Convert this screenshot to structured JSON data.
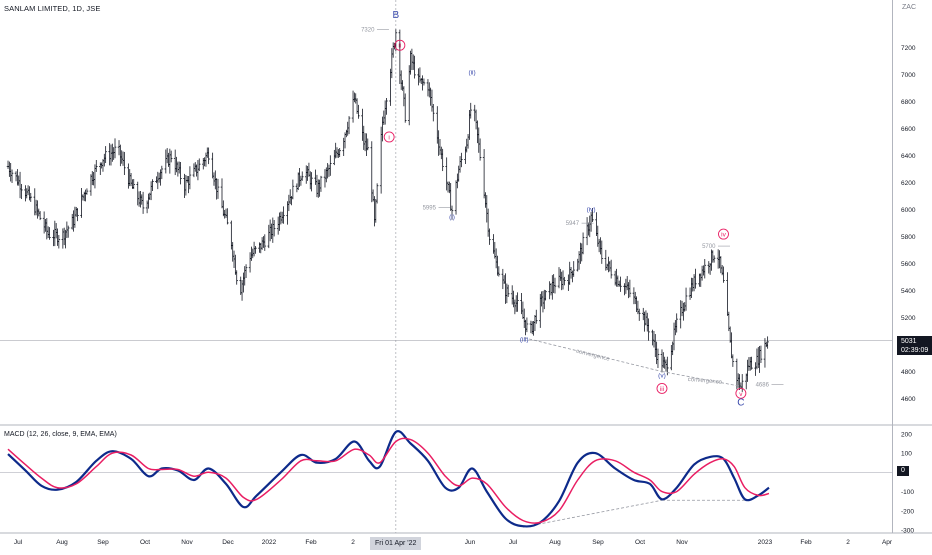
{
  "header": {
    "symbol": "SANLAM LIMITED, 1D, JSE",
    "currency": "ZAC",
    "last_price": "5031",
    "countdown": "02:39:09",
    "crosshair_date": "Fri 01 Apr '22",
    "macd_title": "MACD (12, 26, close, 9, EMA, EMA)",
    "macd_zero_label": "0"
  },
  "colors": {
    "bars": "#131722",
    "wave_pink": "#e91e63",
    "wave_blue": "#3949ab",
    "macd_line": "#0d2a8a",
    "signal_line": "#e91e63",
    "annotation_grey": "#9598a1"
  },
  "chart_data": [
    {
      "type": "ohlc",
      "title": "SANLAM LIMITED, 1D, JSE",
      "x_ticks": [
        "Jul",
        "Aug",
        "Sep",
        "Oct",
        "Nov",
        "Dec",
        "2022",
        "Feb",
        "2",
        "Jun",
        "Jul",
        "Aug",
        "Sep",
        "Oct",
        "Nov",
        "2023",
        "Feb",
        "2",
        "Apr"
      ],
      "y_ticks": [
        7200,
        7000,
        6800,
        6600,
        6400,
        6200,
        6000,
        5800,
        5600,
        5400,
        5200,
        5000,
        4800,
        4600
      ],
      "ylim": [
        4500,
        7450
      ],
      "close_path": [
        [
          "2021-06-15",
          6320
        ],
        [
          "2021-06-25",
          6180
        ],
        [
          "2021-07-05",
          6020
        ],
        [
          "2021-07-15",
          5820
        ],
        [
          "2021-07-25",
          5800
        ],
        [
          "2021-08-03",
          5920
        ],
        [
          "2021-08-15",
          6220
        ],
        [
          "2021-08-25",
          6380
        ],
        [
          "2021-09-05",
          6450
        ],
        [
          "2021-09-15",
          6180
        ],
        [
          "2021-09-24",
          6020
        ],
        [
          "2021-10-05",
          6260
        ],
        [
          "2021-10-15",
          6400
        ],
        [
          "2021-10-25",
          6180
        ],
        [
          "2021-11-03",
          6300
        ],
        [
          "2021-11-12",
          6420
        ],
        [
          "2021-11-20",
          6080
        ],
        [
          "2021-11-28",
          5820
        ],
        [
          "2021-12-05",
          5380
        ],
        [
          "2021-12-12",
          5650
        ],
        [
          "2021-12-20",
          5720
        ],
        [
          "2022-01-01",
          5880
        ],
        [
          "2022-01-12",
          6100
        ],
        [
          "2022-01-22",
          6300
        ],
        [
          "2022-02-01",
          6150
        ],
        [
          "2022-02-10",
          6300
        ],
        [
          "2022-02-20",
          6500
        ],
        [
          "2022-03-01",
          6820
        ],
        [
          "2022-03-08",
          6500
        ],
        [
          "2022-03-12",
          6420
        ],
        [
          "2022-03-16",
          5900
        ],
        [
          "2022-03-22",
          6650
        ],
        [
          "2022-03-28",
          7050
        ],
        [
          "2022-04-01",
          7320
        ],
        [
          "2022-04-05",
          6950
        ],
        [
          "2022-04-08",
          6700
        ],
        [
          "2022-04-12",
          7120
        ],
        [
          "2022-04-18",
          6950
        ],
        [
          "2022-04-25",
          6920
        ],
        [
          "2022-05-02",
          6550
        ],
        [
          "2022-05-08",
          6250
        ],
        [
          "2022-05-13",
          5995
        ],
        [
          "2022-05-18",
          6300
        ],
        [
          "2022-05-24",
          6500
        ],
        [
          "2022-05-28",
          6820
        ],
        [
          "2022-06-03",
          6400
        ],
        [
          "2022-06-10",
          5800
        ],
        [
          "2022-06-15",
          5600
        ],
        [
          "2022-06-22",
          5400
        ],
        [
          "2022-06-29",
          5330
        ],
        [
          "2022-07-05",
          5200
        ],
        [
          "2022-07-10",
          5080
        ],
        [
          "2022-07-18",
          5300
        ],
        [
          "2022-07-28",
          5450
        ],
        [
          "2022-08-08",
          5500
        ],
        [
          "2022-08-16",
          5650
        ],
        [
          "2022-08-25",
          5947
        ],
        [
          "2022-09-02",
          5650
        ],
        [
          "2022-09-12",
          5500
        ],
        [
          "2022-09-22",
          5400
        ],
        [
          "2022-10-01",
          5250
        ],
        [
          "2022-10-08",
          5100
        ],
        [
          "2022-10-14",
          4900
        ],
        [
          "2022-10-20",
          4830
        ],
        [
          "2022-10-28",
          5150
        ],
        [
          "2022-11-04",
          5350
        ],
        [
          "2022-11-12",
          5500
        ],
        [
          "2022-11-20",
          5600
        ],
        [
          "2022-11-27",
          5700
        ],
        [
          "2022-12-02",
          5450
        ],
        [
          "2022-12-07",
          5000
        ],
        [
          "2022-12-10",
          4800
        ],
        [
          "2022-12-15",
          4686
        ],
        [
          "2022-12-21",
          4850
        ],
        [
          "2022-12-27",
          4880
        ],
        [
          "2023-01-04",
          5031
        ]
      ],
      "annotations": [
        {
          "text": "B",
          "date": "2022-04-01",
          "price": 7420,
          "color": "wave_blue"
        },
        {
          "text": "7320",
          "date": "2022-03-11",
          "price": 7320,
          "color": "annotation_grey"
        },
        {
          "text": "ii",
          "date": "2022-04-04",
          "price": 7200,
          "color": "wave_pink",
          "circle": true
        },
        {
          "text": "i",
          "date": "2022-03-27",
          "price": 6520,
          "color": "wave_pink",
          "circle": true
        },
        {
          "text": "(ii)",
          "date": "2022-05-28",
          "price": 7000,
          "color": "wave_blue"
        },
        {
          "text": "5995",
          "date": "2022-04-26",
          "price": 6000,
          "color": "annotation_grey"
        },
        {
          "text": "(i)",
          "date": "2022-05-13",
          "price": 5930,
          "color": "wave_blue"
        },
        {
          "text": "5947",
          "date": "2022-08-11",
          "price": 5885,
          "color": "annotation_grey"
        },
        {
          "text": "(iv)",
          "date": "2022-08-25",
          "price": 5985,
          "color": "wave_blue"
        },
        {
          "text": "5700",
          "date": "2022-11-21",
          "price": 5715,
          "color": "annotation_grey"
        },
        {
          "text": "iv",
          "date": "2022-12-02",
          "price": 5800,
          "color": "wave_pink",
          "circle": true
        },
        {
          "text": "(iii)",
          "date": "2022-07-06",
          "price": 5023,
          "color": "wave_blue"
        },
        {
          "text": "convergence",
          "date": "2022-08-26",
          "price": 4910,
          "color": "annotation_grey"
        },
        {
          "text": "(v)",
          "date": "2022-10-17",
          "price": 4756,
          "color": "wave_blue"
        },
        {
          "text": "iii",
          "date": "2022-10-17",
          "price": 4656,
          "color": "wave_pink",
          "circle": true
        },
        {
          "text": "convergence",
          "date": "2022-11-18",
          "price": 4720,
          "color": "annotation_grey"
        },
        {
          "text": "4686",
          "date": "2022-12-31",
          "price": 4690,
          "color": "annotation_grey"
        },
        {
          "text": "v",
          "date": "2022-12-15",
          "price": 4620,
          "color": "wave_pink",
          "circle": true
        },
        {
          "text": "C",
          "date": "2022-12-15",
          "price": 4550,
          "color": "wave_blue"
        }
      ],
      "trendlines": [
        {
          "from": [
            "2022-07-06",
            5050
          ],
          "to": [
            "2022-10-17",
            4800
          ]
        },
        {
          "from": [
            "2022-10-17",
            4800
          ],
          "to": [
            "2022-12-15",
            4690
          ]
        }
      ],
      "last_price_line": 5031,
      "crosshair_date": "2022-04-01"
    },
    {
      "type": "line",
      "title": "MACD (12, 26, close, 9, EMA, EMA)",
      "y_ticks": [
        200,
        100,
        0,
        -100,
        -200,
        -300
      ],
      "ylim": [
        -310,
        220
      ],
      "series": [
        {
          "color": "macd_line",
          "points": [
            [
              "2021-06-15",
              95
            ],
            [
              "2021-06-28",
              10
            ],
            [
              "2021-07-10",
              -70
            ],
            [
              "2021-07-22",
              -90
            ],
            [
              "2021-08-05",
              -50
            ],
            [
              "2021-08-20",
              60
            ],
            [
              "2021-09-01",
              110
            ],
            [
              "2021-09-15",
              70
            ],
            [
              "2021-09-28",
              -20
            ],
            [
              "2021-10-08",
              20
            ],
            [
              "2021-10-20",
              10
            ],
            [
              "2021-11-01",
              -40
            ],
            [
              "2021-11-12",
              20
            ],
            [
              "2021-11-25",
              -60
            ],
            [
              "2021-12-08",
              -180
            ],
            [
              "2021-12-18",
              -120
            ],
            [
              "2022-01-05",
              0
            ],
            [
              "2022-01-20",
              90
            ],
            [
              "2022-02-01",
              50
            ],
            [
              "2022-02-15",
              70
            ],
            [
              "2022-03-01",
              160
            ],
            [
              "2022-03-12",
              60
            ],
            [
              "2022-03-20",
              30
            ],
            [
              "2022-04-01",
              210
            ],
            [
              "2022-04-12",
              150
            ],
            [
              "2022-04-25",
              60
            ],
            [
              "2022-05-08",
              -80
            ],
            [
              "2022-05-18",
              -80
            ],
            [
              "2022-05-28",
              20
            ],
            [
              "2022-06-08",
              -100
            ],
            [
              "2022-06-22",
              -240
            ],
            [
              "2022-07-05",
              -280
            ],
            [
              "2022-07-18",
              -260
            ],
            [
              "2022-08-01",
              -150
            ],
            [
              "2022-08-15",
              50
            ],
            [
              "2022-08-28",
              100
            ],
            [
              "2022-09-12",
              20
            ],
            [
              "2022-09-26",
              -40
            ],
            [
              "2022-10-08",
              -60
            ],
            [
              "2022-10-17",
              -140
            ],
            [
              "2022-10-28",
              -80
            ],
            [
              "2022-11-10",
              40
            ],
            [
              "2022-11-22",
              80
            ],
            [
              "2022-12-02",
              70
            ],
            [
              "2022-12-10",
              -30
            ],
            [
              "2022-12-18",
              -140
            ],
            [
              "2022-12-28",
              -120
            ],
            [
              "2023-01-05",
              -80
            ]
          ]
        },
        {
          "color": "signal_line",
          "points": [
            [
              "2021-06-15",
              120
            ],
            [
              "2021-06-28",
              40
            ],
            [
              "2021-07-10",
              -30
            ],
            [
              "2021-07-22",
              -80
            ],
            [
              "2021-08-05",
              -60
            ],
            [
              "2021-08-20",
              30
            ],
            [
              "2021-09-01",
              100
            ],
            [
              "2021-09-15",
              90
            ],
            [
              "2021-09-28",
              20
            ],
            [
              "2021-10-08",
              15
            ],
            [
              "2021-10-20",
              15
            ],
            [
              "2021-11-01",
              -20
            ],
            [
              "2021-11-12",
              0
            ],
            [
              "2021-11-25",
              -30
            ],
            [
              "2021-12-08",
              -130
            ],
            [
              "2021-12-18",
              -140
            ],
            [
              "2022-01-05",
              -40
            ],
            [
              "2022-01-20",
              60
            ],
            [
              "2022-02-01",
              60
            ],
            [
              "2022-02-15",
              60
            ],
            [
              "2022-03-01",
              120
            ],
            [
              "2022-03-12",
              90
            ],
            [
              "2022-03-20",
              50
            ],
            [
              "2022-04-01",
              160
            ],
            [
              "2022-04-12",
              170
            ],
            [
              "2022-04-25",
              100
            ],
            [
              "2022-05-08",
              -20
            ],
            [
              "2022-05-18",
              -70
            ],
            [
              "2022-05-28",
              -30
            ],
            [
              "2022-06-08",
              -60
            ],
            [
              "2022-06-22",
              -180
            ],
            [
              "2022-07-05",
              -250
            ],
            [
              "2022-07-18",
              -260
            ],
            [
              "2022-08-01",
              -200
            ],
            [
              "2022-08-15",
              -40
            ],
            [
              "2022-08-28",
              60
            ],
            [
              "2022-09-12",
              60
            ],
            [
              "2022-09-26",
              0
            ],
            [
              "2022-10-08",
              -40
            ],
            [
              "2022-10-17",
              -100
            ],
            [
              "2022-10-28",
              -100
            ],
            [
              "2022-11-10",
              -10
            ],
            [
              "2022-11-22",
              50
            ],
            [
              "2022-12-02",
              70
            ],
            [
              "2022-12-10",
              30
            ],
            [
              "2022-12-18",
              -80
            ],
            [
              "2022-12-28",
              -120
            ],
            [
              "2023-01-05",
              -110
            ]
          ]
        }
      ],
      "trendlines": [
        {
          "from": [
            "2022-07-05",
            -285
          ],
          "to": [
            "2022-10-17",
            -145
          ]
        },
        {
          "from": [
            "2022-10-17",
            -145
          ],
          "to": [
            "2022-12-18",
            -145
          ]
        }
      ]
    }
  ]
}
